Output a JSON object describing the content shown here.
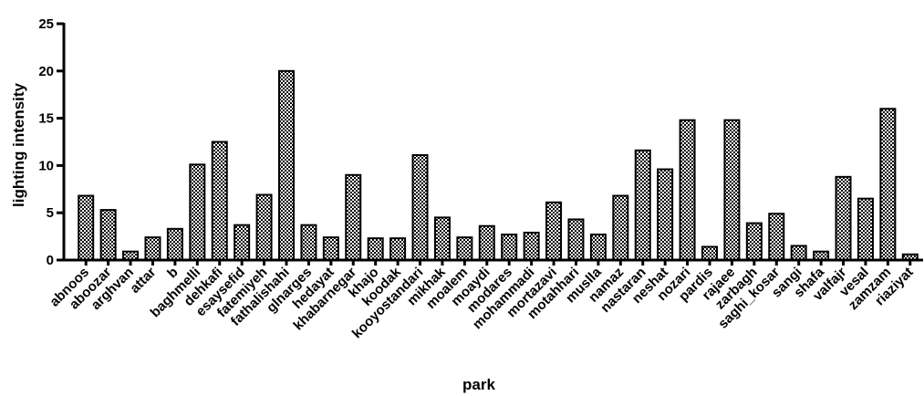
{
  "chart_data": {
    "type": "bar",
    "xlabel": "park",
    "ylabel": "lighting intensity",
    "ylim": [
      0,
      25
    ],
    "yticks": [
      "0",
      "5",
      "10",
      "15",
      "20",
      "25"
    ],
    "grid": false,
    "legend": "none",
    "bar_fill": "checkered",
    "categories": [
      "abnoos",
      "aboozar",
      "arghvan",
      "attar",
      "b",
      "baghmelli",
      "dehkafi",
      "esaysefid",
      "fatemiyeh",
      "fathalishahi",
      "glnarges",
      "hedayat",
      "khabarnegar",
      "khajo",
      "koodak",
      "kooyostandari",
      "mikhak",
      "moalem",
      "moaydi",
      "modares",
      "mohammadi",
      "mortazavi",
      "motahhari",
      "muslla",
      "namaz",
      "nastaran",
      "neshat",
      "nozari",
      "pardis",
      "rajaee",
      "zarbagh",
      "saghi_kosar",
      "sangi",
      "shafa",
      "valfajr",
      "vesal",
      "zamzam",
      "riaziyat"
    ],
    "values": [
      6.8,
      5.3,
      0.9,
      2.4,
      3.3,
      10.1,
      12.5,
      3.7,
      6.9,
      20.0,
      3.7,
      2.4,
      9.0,
      2.3,
      2.3,
      11.1,
      4.5,
      2.4,
      3.6,
      2.7,
      2.9,
      6.1,
      4.3,
      2.7,
      6.8,
      11.6,
      9.6,
      14.8,
      1.4,
      14.8,
      3.9,
      4.9,
      1.5,
      0.9,
      8.8,
      6.5,
      16.0,
      0.6
    ]
  }
}
